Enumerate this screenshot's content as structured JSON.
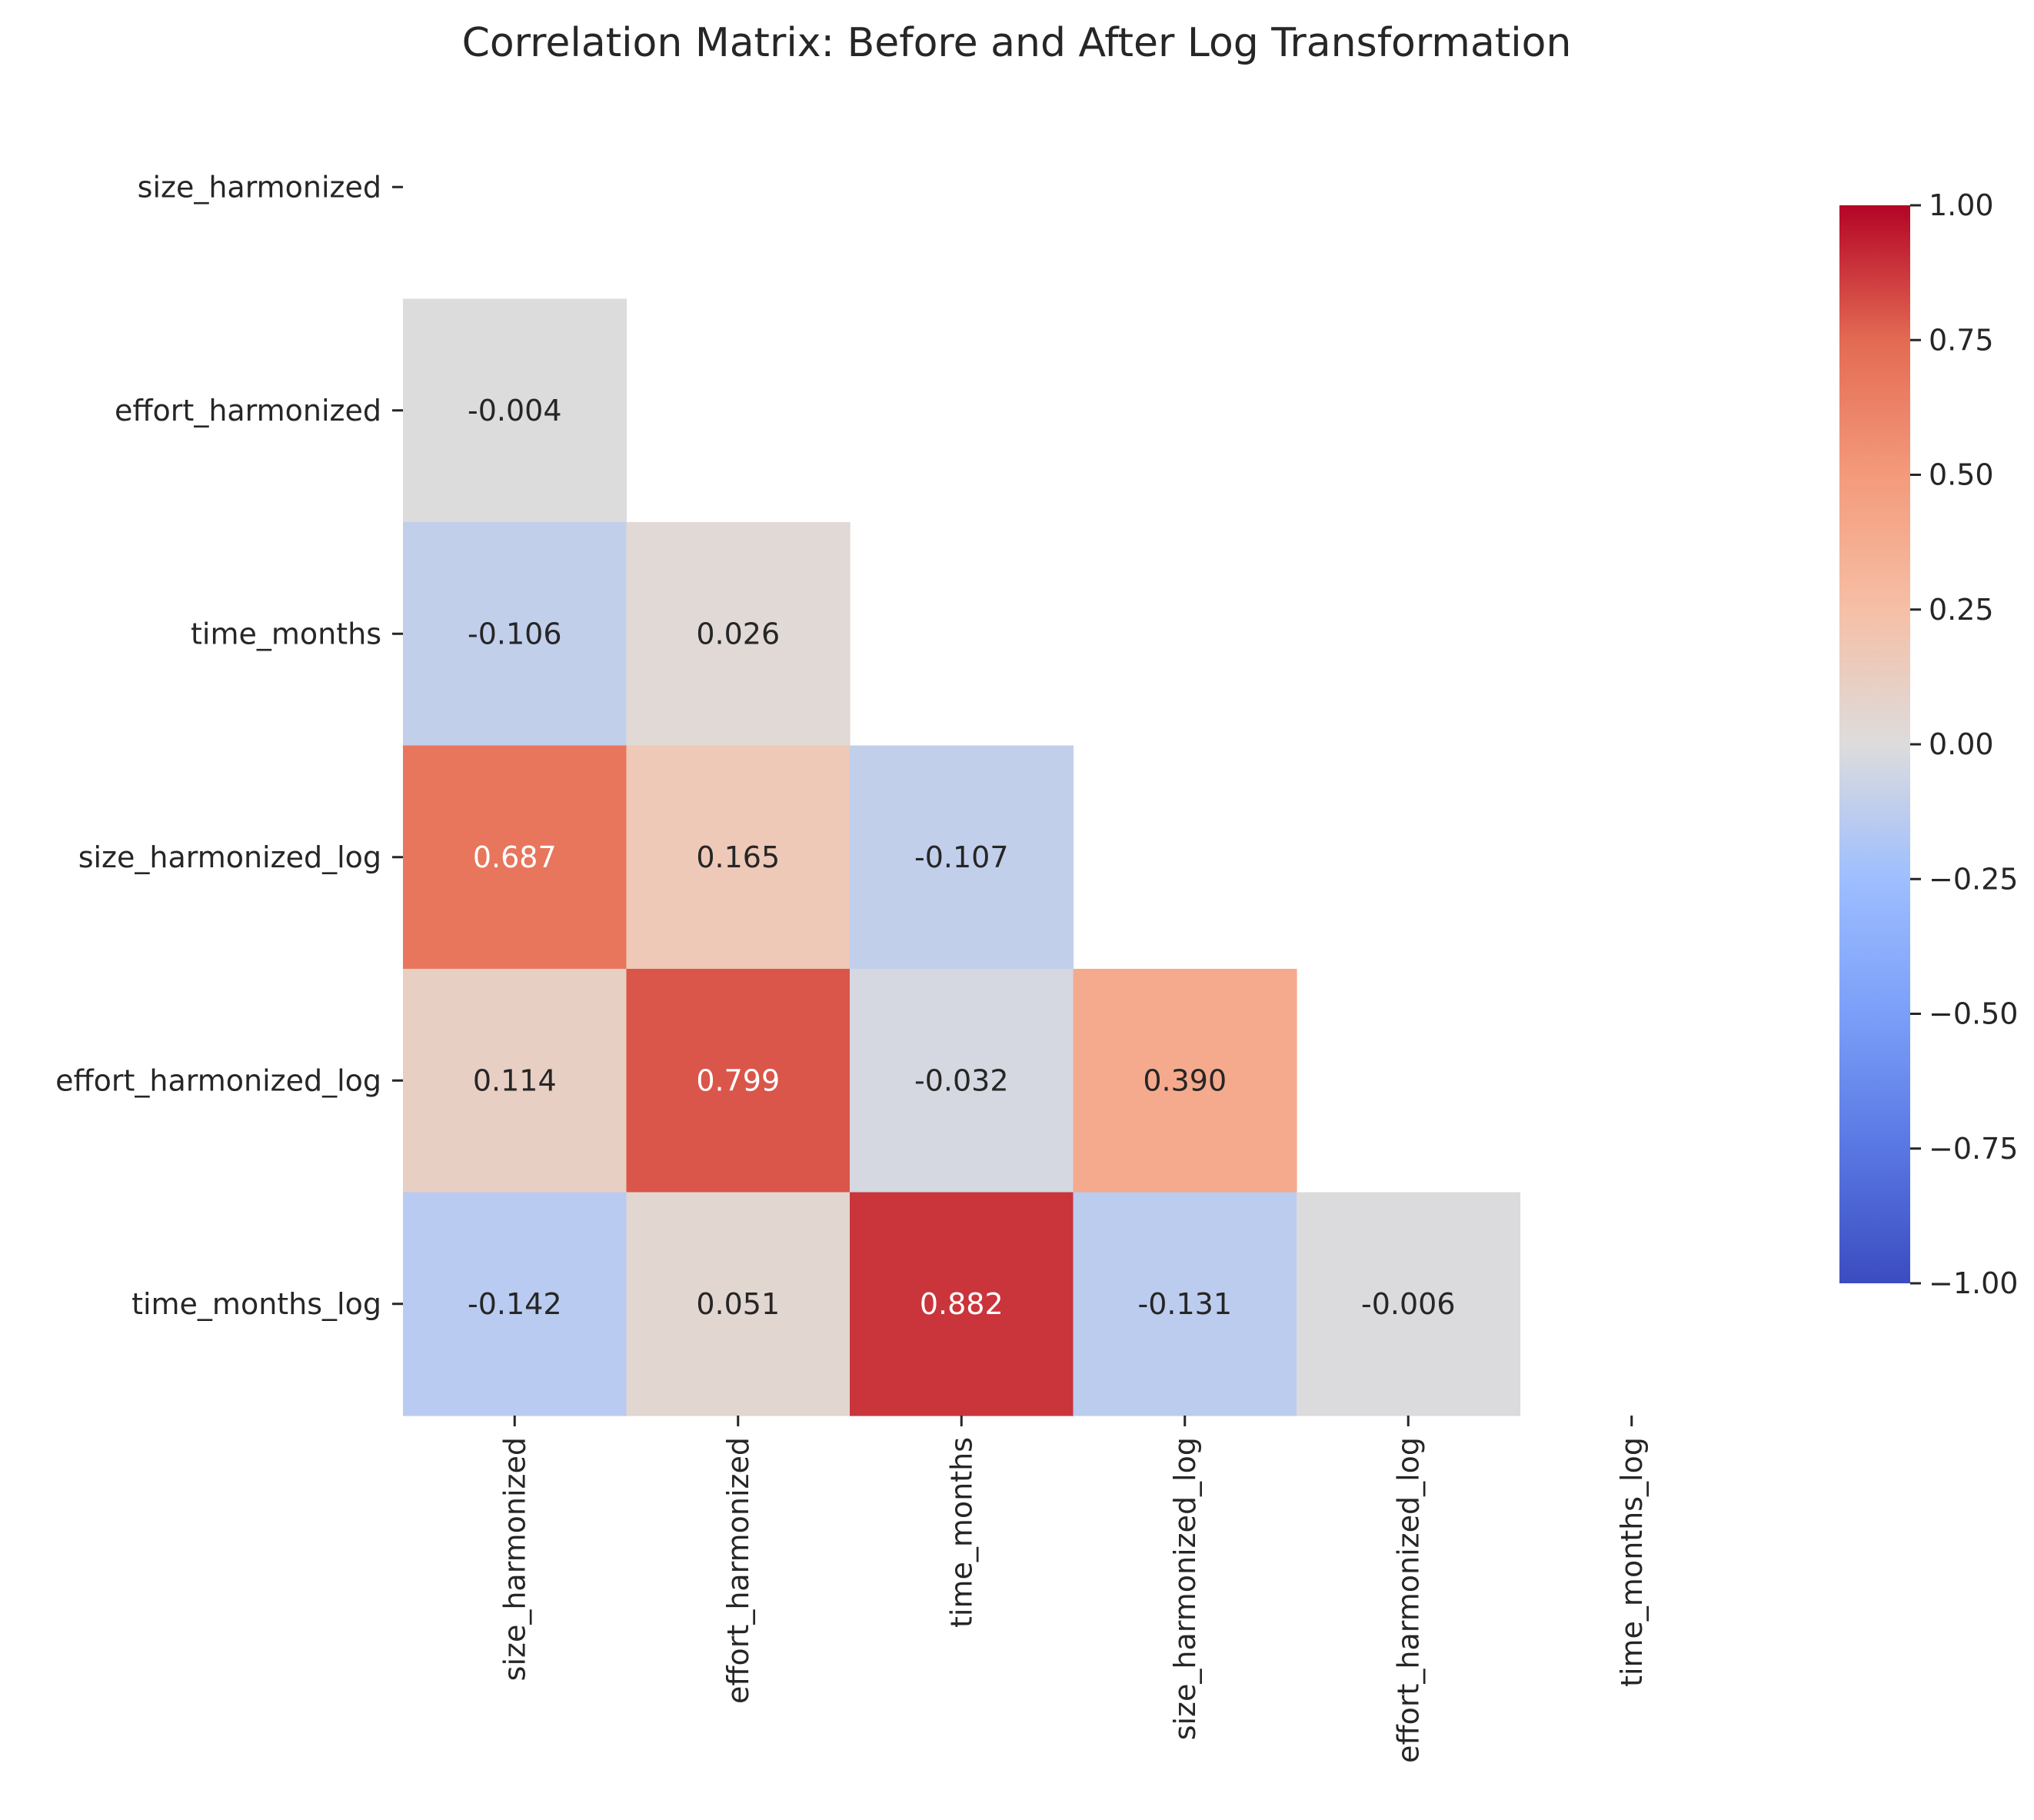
{
  "chart_data": {
    "type": "heatmap",
    "title": "Correlation Matrix: Before and After Log Transformation",
    "variables": [
      "size_harmonized",
      "effort_harmonized",
      "time_months",
      "size_harmonized_log",
      "effort_harmonized_log",
      "time_months_log"
    ],
    "mask": "upper-triangle-including-diagonal",
    "matrix": [
      [
        null,
        null,
        null,
        null,
        null,
        null
      ],
      [
        -0.004,
        null,
        null,
        null,
        null,
        null
      ],
      [
        -0.106,
        0.026,
        null,
        null,
        null,
        null
      ],
      [
        0.687,
        0.165,
        -0.107,
        null,
        null,
        null
      ],
      [
        0.114,
        0.799,
        -0.032,
        0.39,
        null,
        null
      ],
      [
        -0.142,
        0.051,
        0.882,
        -0.131,
        -0.006,
        null
      ]
    ],
    "value_format": "3 decimals",
    "colormap": "coolwarm",
    "vmin": -1.0,
    "vmax": 1.0,
    "colorbar_ticks": [
      "1.00",
      "0.75",
      "0.50",
      "0.25",
      "0.00",
      "−0.25",
      "−0.50",
      "−0.75",
      "−1.00"
    ],
    "colorbar_tick_values": [
      1.0,
      0.75,
      0.5,
      0.25,
      0.0,
      -0.25,
      -0.5,
      -0.75,
      -1.0
    ],
    "colorbar_placement": "right"
  }
}
